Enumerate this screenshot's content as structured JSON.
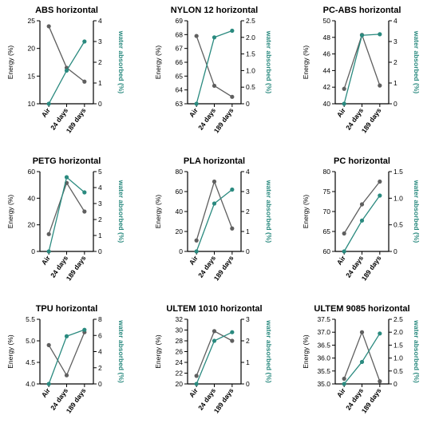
{
  "colors": {
    "energy": "#5f5f5f",
    "water": "#2a8a7f",
    "axis": "#000000"
  },
  "labels": {
    "energy_axis": "Energy (%)",
    "water_axis": "water absorbed (%)",
    "categories": [
      "Air",
      "24 days",
      "189 days"
    ]
  },
  "chart_data": [
    {
      "type": "line",
      "title": "ABS horizontal",
      "categories": [
        "Air",
        "24 days",
        "189 days"
      ],
      "ylabel": "Energy (%)",
      "y2label": "water absorbed (%)",
      "ylim": [
        10,
        25
      ],
      "yticks": [
        10,
        15,
        20,
        25
      ],
      "y2lim": [
        0,
        4
      ],
      "y2ticks": [
        0,
        1,
        2,
        3,
        4
      ],
      "y2ticklabels": [
        "0",
        "1",
        "2",
        "3",
        "4"
      ],
      "series": [
        {
          "axis": "left",
          "color": "#5f5f5f",
          "values": [
            24.0,
            16.5,
            14.0
          ]
        },
        {
          "axis": "right",
          "color": "#2a8a7f",
          "values": [
            0,
            1.6,
            3.0
          ]
        }
      ]
    },
    {
      "type": "line",
      "title": "NYLON 12 horizontal",
      "categories": [
        "Air",
        "24 days",
        "189 days"
      ],
      "ylabel": "Energy (%)",
      "y2label": "water absorbed (%)",
      "ylim": [
        63,
        69
      ],
      "yticks": [
        63,
        64,
        65,
        66,
        67,
        68,
        69
      ],
      "y2lim": [
        0,
        2.5
      ],
      "y2ticks": [
        0,
        0.5,
        1.0,
        1.5,
        2.0,
        2.5
      ],
      "y2ticklabels": [
        "0",
        "0.5",
        "1.0",
        "1.5",
        "2.0",
        "2.5"
      ],
      "series": [
        {
          "axis": "left",
          "color": "#5f5f5f",
          "values": [
            67.9,
            64.3,
            63.5
          ]
        },
        {
          "axis": "right",
          "color": "#2a8a7f",
          "values": [
            0,
            2.0,
            2.2
          ]
        }
      ]
    },
    {
      "type": "line",
      "title": "PC-ABS horizontal",
      "categories": [
        "Air",
        "24 days",
        "189 days"
      ],
      "ylabel": "Energy (%)",
      "y2label": "water absorbed (%)",
      "ylim": [
        40,
        50
      ],
      "yticks": [
        40,
        42,
        44,
        46,
        48,
        50
      ],
      "y2lim": [
        0,
        4
      ],
      "y2ticks": [
        0,
        1,
        2,
        3,
        4
      ],
      "y2ticklabels": [
        "0",
        "1",
        "2",
        "3",
        "4"
      ],
      "series": [
        {
          "axis": "left",
          "color": "#5f5f5f",
          "values": [
            41.8,
            48.3,
            42.2
          ]
        },
        {
          "axis": "right",
          "color": "#2a8a7f",
          "values": [
            0,
            3.3,
            3.35
          ]
        }
      ]
    },
    {
      "type": "line",
      "title": "PETG horizontal",
      "categories": [
        "Air",
        "24 days",
        "189 days"
      ],
      "ylabel": "Energy (%)",
      "y2label": "water absorbed (%)",
      "ylim": [
        0,
        60
      ],
      "yticks": [
        0,
        20,
        40,
        60
      ],
      "y2lim": [
        0,
        5
      ],
      "y2ticks": [
        0,
        1,
        2,
        3,
        4,
        5
      ],
      "y2ticklabels": [
        "0",
        "1",
        "2",
        "3",
        "4",
        "5"
      ],
      "series": [
        {
          "axis": "left",
          "color": "#5f5f5f",
          "values": [
            13,
            51.5,
            30
          ]
        },
        {
          "axis": "right",
          "color": "#2a8a7f",
          "values": [
            0,
            4.65,
            3.7
          ]
        }
      ]
    },
    {
      "type": "line",
      "title": "PLA horizontal",
      "categories": [
        "Air",
        "24 days",
        "189 days"
      ],
      "ylabel": "Energy (%)",
      "y2label": "water absorbed (%)",
      "ylim": [
        0,
        80
      ],
      "yticks": [
        0,
        20,
        40,
        60,
        80
      ],
      "y2lim": [
        0,
        4
      ],
      "y2ticks": [
        0,
        1,
        2,
        3,
        4
      ],
      "y2ticklabels": [
        "0",
        "1",
        "2",
        "3",
        "4"
      ],
      "series": [
        {
          "axis": "left",
          "color": "#5f5f5f",
          "values": [
            11,
            70,
            23
          ]
        },
        {
          "axis": "right",
          "color": "#2a8a7f",
          "values": [
            0,
            2.4,
            3.1
          ]
        }
      ]
    },
    {
      "type": "line",
      "title": "PC horizontal",
      "categories": [
        "Air",
        "24 days",
        "189 days"
      ],
      "ylabel": "Energy (%)",
      "y2label": "water absorbed (%)",
      "ylim": [
        60,
        80
      ],
      "yticks": [
        60,
        65,
        70,
        75,
        80
      ],
      "y2lim": [
        0,
        1.5
      ],
      "y2ticks": [
        0,
        0.5,
        1.0,
        1.5
      ],
      "y2ticklabels": [
        "0",
        "0.5",
        "1.0",
        "1.5"
      ],
      "series": [
        {
          "axis": "left",
          "color": "#5f5f5f",
          "values": [
            64.5,
            71.8,
            77.5
          ]
        },
        {
          "axis": "right",
          "color": "#2a8a7f",
          "values": [
            0,
            0.58,
            1.05
          ]
        }
      ]
    },
    {
      "type": "line",
      "title": "TPU horizontal",
      "categories": [
        "Air",
        "24 days",
        "189 days"
      ],
      "ylabel": "Energy (%)",
      "y2label": "water absorbed (%)",
      "ylim": [
        4.0,
        5.5
      ],
      "yticks": [
        4.0,
        4.5,
        5.0,
        5.5
      ],
      "y2lim": [
        0,
        8
      ],
      "y2ticks": [
        0,
        2,
        4,
        6,
        8
      ],
      "y2ticklabels": [
        "0",
        "2",
        "4",
        "6",
        "8"
      ],
      "series": [
        {
          "axis": "left",
          "color": "#5f5f5f",
          "values": [
            4.9,
            4.2,
            5.2
          ]
        },
        {
          "axis": "right",
          "color": "#2a8a7f",
          "values": [
            0,
            5.9,
            6.7
          ]
        }
      ]
    },
    {
      "type": "line",
      "title": "ULTEM 1010 horizontal",
      "categories": [
        "Air",
        "24 days",
        "189 days"
      ],
      "ylabel": "Energy (%)",
      "y2label": "water absorbed (%)",
      "ylim": [
        20,
        32
      ],
      "yticks": [
        20,
        22,
        24,
        26,
        28,
        30,
        32
      ],
      "y2lim": [
        0,
        3
      ],
      "y2ticks": [
        0,
        1,
        2,
        3
      ],
      "y2ticklabels": [
        "0",
        "1",
        "2",
        "3"
      ],
      "series": [
        {
          "axis": "left",
          "color": "#5f5f5f",
          "values": [
            21.5,
            29.8,
            28.0
          ]
        },
        {
          "axis": "right",
          "color": "#2a8a7f",
          "values": [
            0,
            2.0,
            2.4
          ]
        }
      ]
    },
    {
      "type": "line",
      "title": "ULTEM 9085 horizontal",
      "categories": [
        "Air",
        "24 days",
        "189 days"
      ],
      "ylabel": "Energy (%)",
      "y2label": "water absorbed (%)",
      "ylim": [
        35.0,
        37.5
      ],
      "yticks": [
        35.0,
        35.5,
        36.0,
        36.5,
        37.0,
        37.5
      ],
      "y2lim": [
        0,
        2.5
      ],
      "y2ticks": [
        0,
        0.5,
        1.0,
        1.5,
        2.0,
        2.5
      ],
      "y2ticklabels": [
        "0",
        "0.5",
        "1.0",
        "1.5",
        "2.0",
        "2.5"
      ],
      "series": [
        {
          "axis": "left",
          "color": "#5f5f5f",
          "values": [
            35.2,
            37.0,
            35.1
          ]
        },
        {
          "axis": "right",
          "color": "#2a8a7f",
          "values": [
            0,
            0.85,
            1.95
          ]
        }
      ]
    }
  ]
}
